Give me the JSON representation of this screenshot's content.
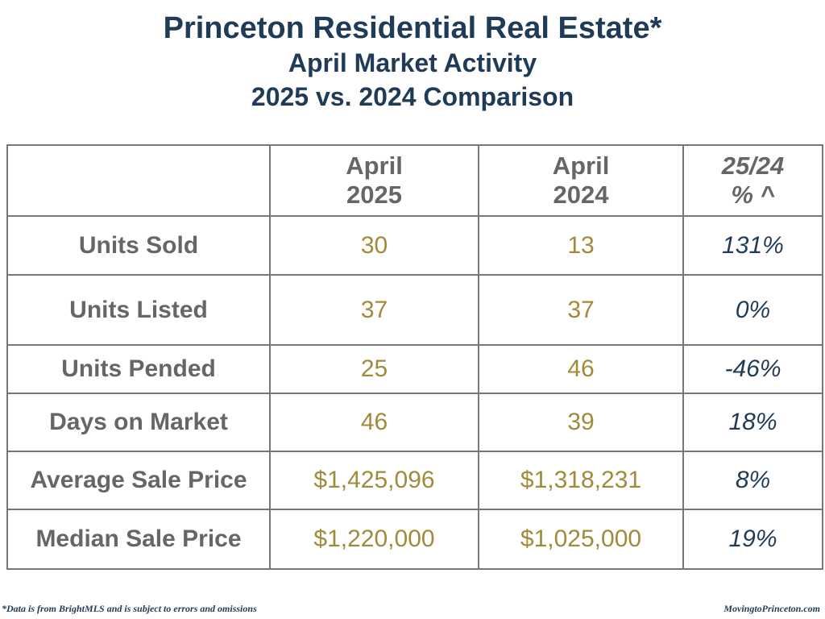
{
  "header": {
    "title": "Princeton Residential Real Estate*",
    "subtitle": "April Market Activity",
    "comparison": "2025 vs. 2024 Comparison"
  },
  "table": {
    "columns": [
      {
        "line1": "",
        "line2": ""
      },
      {
        "line1": "April",
        "line2": "2025"
      },
      {
        "line1": "April",
        "line2": "2024"
      },
      {
        "line1": "25/24",
        "line2": "% ^"
      }
    ],
    "rows": [
      {
        "label": "Units Sold",
        "y2025": "30",
        "y2024": "13",
        "pct": "131%"
      },
      {
        "label": "Units Listed",
        "y2025": "37",
        "y2024": "37",
        "pct": "0%"
      },
      {
        "label": "Units Pended",
        "y2025": "25",
        "y2024": "46",
        "pct": "-46%"
      },
      {
        "label": "Days on Market",
        "y2025": "46",
        "y2024": "39",
        "pct": "18%"
      },
      {
        "label": "Average Sale Price",
        "y2025": "$1,425,096",
        "y2024": "$1,318,231",
        "pct": "8%"
      },
      {
        "label": "Median Sale Price",
        "y2025": "$1,220,000",
        "y2024": "$1,025,000",
        "pct": "19%"
      }
    ]
  },
  "footer": {
    "disclaimer": "*Data is from BrightMLS and is subject to errors and omissions",
    "site": "MovingtoPrinceton.com"
  },
  "colors": {
    "title": "#1f3b57",
    "label": "#666666",
    "value": "#a08b3a",
    "percent": "#1f3b57",
    "border": "#777777"
  }
}
